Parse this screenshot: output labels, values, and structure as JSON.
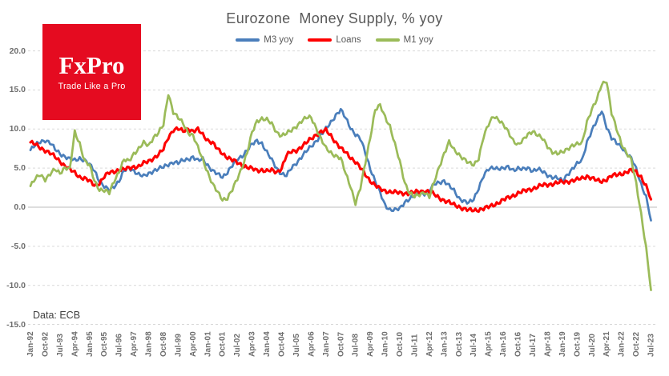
{
  "title": "Eurozone  Money Supply, % yoy",
  "source_note": "Data: ECB",
  "logo": {
    "brand": "FxPro",
    "tagline": "Trade Like a Pro",
    "bg_color": "#e50b20"
  },
  "colors": {
    "m3": "#4a7ebb",
    "loans": "#fe0000",
    "m1": "#9bbb59",
    "grid": "#d9d9d9",
    "zero_line": "#bdbdbd",
    "tick_label": "#6e6e6e",
    "title": "#595959"
  },
  "legend": [
    {
      "id": "m3",
      "label": "M3 yoy"
    },
    {
      "id": "loans",
      "label": "Loans"
    },
    {
      "id": "m1",
      "label": "M1 yoy"
    }
  ],
  "y_axis": {
    "tick_labels": [
      "20.0",
      "15.0",
      "10.0",
      "5.0",
      "0.0",
      "-5.0",
      "-10.0",
      "-15.0"
    ],
    "min": -15,
    "max": 20
  },
  "x_axis": {
    "tick_labels": [
      "Jan-92",
      "Oct-92",
      "Jul-93",
      "Apr-94",
      "Jan-95",
      "Oct-95",
      "Jul-96",
      "Apr-97",
      "Jan-98",
      "Oct-98",
      "Jul-99",
      "Apr-00",
      "Jan-01",
      "Oct-01",
      "Jul-02",
      "Apr-03",
      "Jan-04",
      "Oct-04",
      "Jul-05",
      "Apr-06",
      "Jan-07",
      "Oct-07",
      "Jul-08",
      "Apr-09",
      "Jan-10",
      "Oct-10",
      "Jul-11",
      "Apr-12",
      "Jan-13",
      "Oct-13",
      "Jul-14",
      "Apr-15",
      "Jan-16",
      "Oct-16",
      "Jul-17",
      "Apr-18",
      "Jan-19",
      "Oct-19",
      "Jul-20",
      "Apr-21",
      "Jan-22",
      "Oct-22",
      "Jul-23"
    ]
  },
  "chart_data": {
    "type": "line",
    "title": "Eurozone Money Supply, % yoy",
    "x_start": "Jan-92",
    "x_end": "Jul-23",
    "interval_months": 3,
    "ylim": [
      -15,
      20
    ],
    "grid": "horizontal-dashed",
    "legend_position": "top",
    "series": [
      {
        "name": "M3 yoy",
        "color": "#4a7ebb",
        "values": [
          7.3,
          7.9,
          8.4,
          8.6,
          8.2,
          7.4,
          6.9,
          6.5,
          6.1,
          6.0,
          6.3,
          6.0,
          5.4,
          4.7,
          3.4,
          2.6,
          2.1,
          2.7,
          3.4,
          4.6,
          5.0,
          4.7,
          4.2,
          3.9,
          4.3,
          4.7,
          4.9,
          5.1,
          5.5,
          5.8,
          5.6,
          6.0,
          6.2,
          6.4,
          5.9,
          6.2,
          5.4,
          4.6,
          4.2,
          3.9,
          4.5,
          5.3,
          6.1,
          6.6,
          7.3,
          8.0,
          8.5,
          8.2,
          7.0,
          6.0,
          5.0,
          4.3,
          4.0,
          5.0,
          5.7,
          6.4,
          7.1,
          7.8,
          8.5,
          9.2,
          10.0,
          10.9,
          11.8,
          12.4,
          11.4,
          10.2,
          9.3,
          8.7,
          7.0,
          5.0,
          3.3,
          1.8,
          0.3,
          -0.3,
          -0.4,
          -0.2,
          0.7,
          1.1,
          1.4,
          1.7,
          1.8,
          2.1,
          2.9,
          3.2,
          3.4,
          2.7,
          2.1,
          1.2,
          0.8,
          0.5,
          1.0,
          2.5,
          4.0,
          4.8,
          5.1,
          5.0,
          4.9,
          5.1,
          4.8,
          5.0,
          4.8,
          5.0,
          4.7,
          4.9,
          4.5,
          4.1,
          3.9,
          3.7,
          3.3,
          4.2,
          4.9,
          5.5,
          6.0,
          8.4,
          9.8,
          11.0,
          12.4,
          10.3,
          8.8,
          8.2,
          7.8,
          6.9,
          6.2,
          4.9,
          3.0,
          1.3,
          -1.7
        ]
      },
      {
        "name": "Loans",
        "color": "#fe0000",
        "values": [
          8.3,
          8.0,
          7.6,
          7.3,
          6.9,
          6.4,
          5.9,
          5.3,
          4.8,
          4.4,
          3.9,
          3.7,
          3.3,
          2.8,
          3.1,
          3.9,
          4.4,
          4.6,
          4.8,
          4.8,
          5.0,
          5.2,
          5.2,
          5.6,
          5.9,
          6.3,
          6.7,
          7.4,
          9.0,
          9.9,
          10.0,
          9.7,
          10.1,
          9.7,
          9.9,
          9.3,
          8.6,
          8.2,
          7.4,
          6.9,
          6.4,
          6.0,
          5.7,
          5.4,
          5.1,
          4.9,
          4.7,
          4.8,
          4.6,
          4.7,
          4.5,
          5.0,
          6.6,
          7.1,
          7.3,
          7.7,
          8.2,
          8.8,
          9.3,
          9.6,
          9.8,
          9.2,
          8.3,
          7.5,
          7.0,
          6.4,
          5.8,
          5.0,
          4.2,
          3.4,
          2.8,
          2.3,
          2.1,
          2.0,
          1.9,
          1.8,
          1.8,
          1.8,
          1.9,
          2.0,
          2.1,
          2.0,
          1.6,
          1.2,
          0.9,
          0.6,
          0.3,
          0.1,
          -0.2,
          -0.4,
          -0.4,
          -0.3,
          -0.2,
          0.0,
          0.3,
          0.6,
          0.9,
          1.2,
          1.5,
          1.8,
          2.0,
          2.2,
          2.4,
          2.6,
          2.8,
          2.9,
          3.0,
          3.1,
          3.2,
          3.3,
          3.4,
          3.5,
          3.7,
          4.0,
          3.7,
          3.4,
          3.3,
          3.6,
          4.0,
          4.1,
          4.3,
          4.5,
          4.7,
          4.5,
          3.9,
          2.7,
          1.0
        ]
      },
      {
        "name": "M1 yoy",
        "color": "#9bbb59",
        "values": [
          2.7,
          3.6,
          4.2,
          3.6,
          4.2,
          4.8,
          4.4,
          5.1,
          4.8,
          9.6,
          8.2,
          5.9,
          5.3,
          3.4,
          2.3,
          2.1,
          1.8,
          3.4,
          4.6,
          6.0,
          5.9,
          6.9,
          7.5,
          8.2,
          7.9,
          9.0,
          9.5,
          10.5,
          14.6,
          12.2,
          11.4,
          10.7,
          9.6,
          9.2,
          7.6,
          6.1,
          4.5,
          2.9,
          1.9,
          1.0,
          1.2,
          2.2,
          3.6,
          5.2,
          7.0,
          9.5,
          11.0,
          11.4,
          11.2,
          10.6,
          9.6,
          9.2,
          9.4,
          9.8,
          10.4,
          11.0,
          11.4,
          11.5,
          10.2,
          8.7,
          7.5,
          7.0,
          6.6,
          6.2,
          4.3,
          2.7,
          0.5,
          2.4,
          5.7,
          9.0,
          12.4,
          13.0,
          11.6,
          10.4,
          8.0,
          5.8,
          3.2,
          1.8,
          1.3,
          1.6,
          2.0,
          1.3,
          3.2,
          5.2,
          6.9,
          8.3,
          7.3,
          6.8,
          6.2,
          5.6,
          5.4,
          6.3,
          9.0,
          10.5,
          11.7,
          11.3,
          10.5,
          9.6,
          8.6,
          8.0,
          8.5,
          9.3,
          9.8,
          9.2,
          8.7,
          7.8,
          7.1,
          6.8,
          7.0,
          7.5,
          7.9,
          8.0,
          8.2,
          11.0,
          12.5,
          13.7,
          15.8,
          16.2,
          12.0,
          10.0,
          8.2,
          7.0,
          6.0,
          3.0,
          -0.8,
          -5.2,
          -10.6
        ]
      }
    ]
  }
}
